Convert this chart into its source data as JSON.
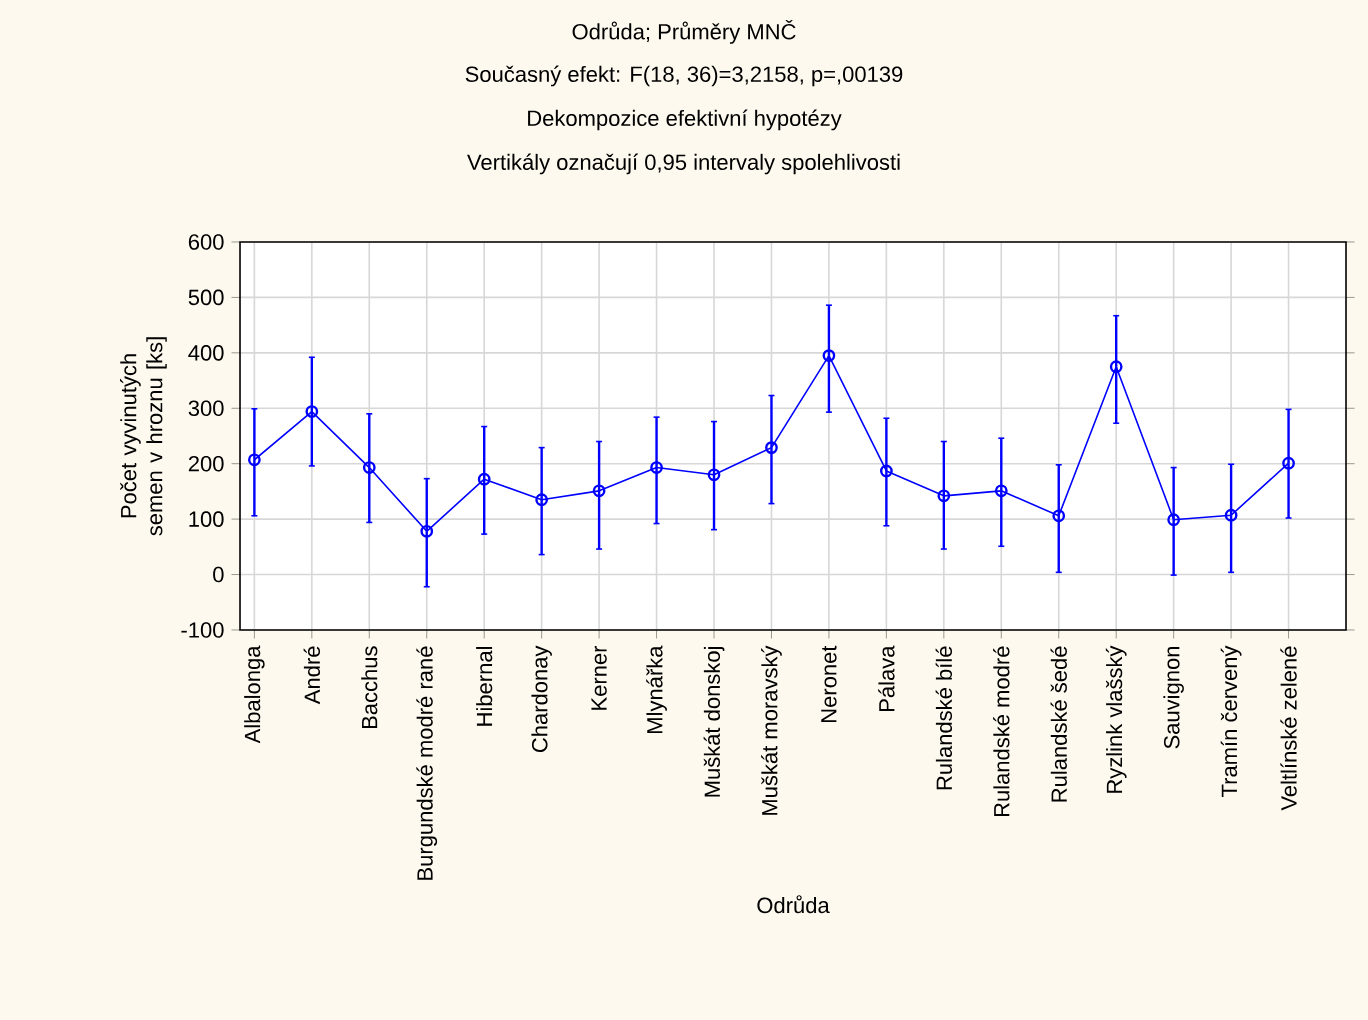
{
  "chart_data": {
    "type": "line",
    "title": "Odrůda; Průměry MNČ",
    "subtitle": "Současný efekt: F(18, 36)=3,2158, p=,00139",
    "annotations": [
      "Dekompozice efektivní hypotézy",
      "Vertikály označují 0,95 intervaly spolehlivosti"
    ],
    "xlabel": "Odrůda",
    "ylabel": "Počet vyvinutých semen v hroznu [ks]",
    "categories": [
      "Albalonga",
      "André",
      "Bacchus",
      "Burgundské modré rané",
      "Hibernal",
      "Chardonay",
      "Kerner",
      "Mlynářka",
      "Muškát donskoj",
      "Muškát moravský",
      "Neronet",
      "Pálava",
      "Rulandské bílé",
      "Rulandské modré",
      "Rulandské šedé",
      "Ryzlink vlašský",
      "Sauvignon",
      "Tramín červený",
      "Veltlínské zelené"
    ],
    "series": [
      {
        "color": "#0000ff",
        "values": [
          207,
          294,
          193,
          78,
          172,
          135,
          151,
          193,
          180,
          229,
          395,
          187,
          142,
          151,
          106,
          375,
          99,
          107,
          201
        ],
        "errors": [
          [
            106,
            299
          ],
          [
            196,
            392
          ],
          [
            94,
            290
          ],
          [
            -22,
            173
          ],
          [
            73,
            267
          ],
          [
            36,
            229
          ],
          [
            46,
            240
          ],
          [
            92,
            284
          ],
          [
            81,
            276
          ],
          [
            128,
            323
          ],
          [
            293,
            486
          ],
          [
            88,
            282
          ],
          [
            46,
            240
          ],
          [
            51,
            246
          ],
          [
            4,
            198
          ],
          [
            273,
            467
          ],
          [
            -1,
            193
          ],
          [
            4,
            199
          ],
          [
            102,
            298
          ]
        ]
      }
    ],
    "ylim": [
      -100,
      600
    ],
    "yticks": [
      -100,
      0,
      100,
      200,
      300,
      400,
      500,
      600
    ],
    "grid": true,
    "marker": "circle",
    "line_style": "solid"
  }
}
